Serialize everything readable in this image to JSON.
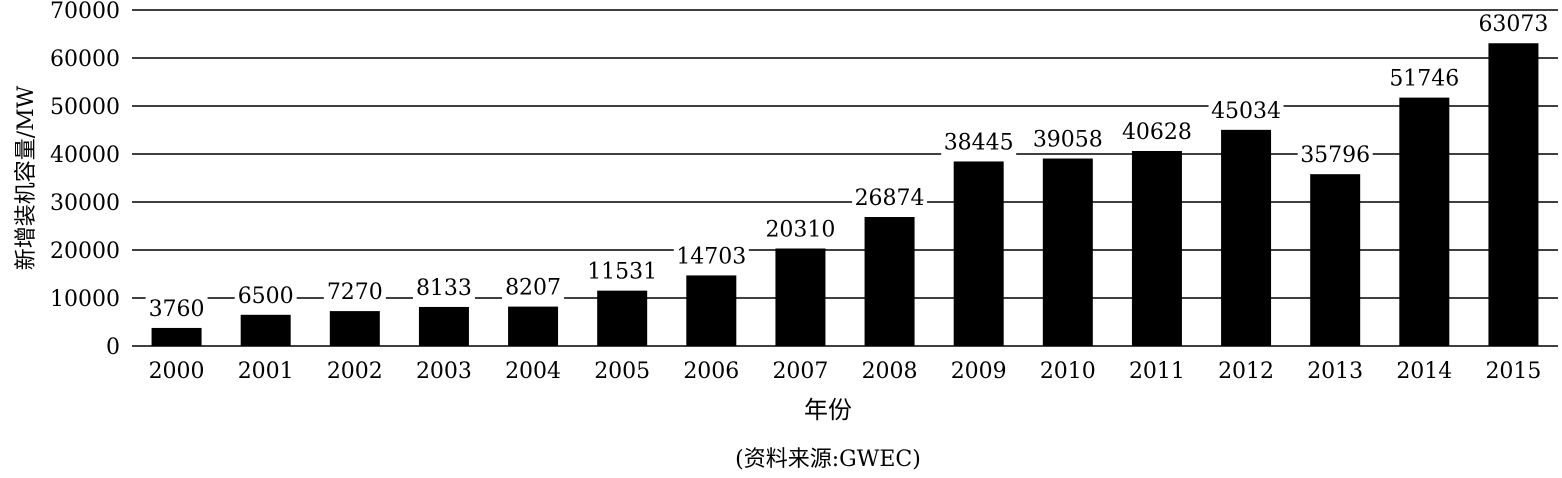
{
  "chart_data": {
    "type": "bar",
    "title": "",
    "xlabel": "年份",
    "ylabel": "新增装机容量/MW",
    "ylim": [
      0,
      70000
    ],
    "yticks": [
      0,
      10000,
      20000,
      30000,
      40000,
      50000,
      60000,
      70000
    ],
    "grid": true,
    "categories": [
      "2000",
      "2001",
      "2002",
      "2003",
      "2004",
      "2005",
      "2006",
      "2007",
      "2008",
      "2009",
      "2010",
      "2011",
      "2012",
      "2013",
      "2014",
      "2015"
    ],
    "values": [
      3760,
      6500,
      7270,
      8133,
      8207,
      11531,
      14703,
      20310,
      26874,
      38445,
      39058,
      40628,
      45034,
      35796,
      51746,
      63073
    ],
    "bar_color": "#000000"
  },
  "source_note": "(资料来源:GWEC)"
}
